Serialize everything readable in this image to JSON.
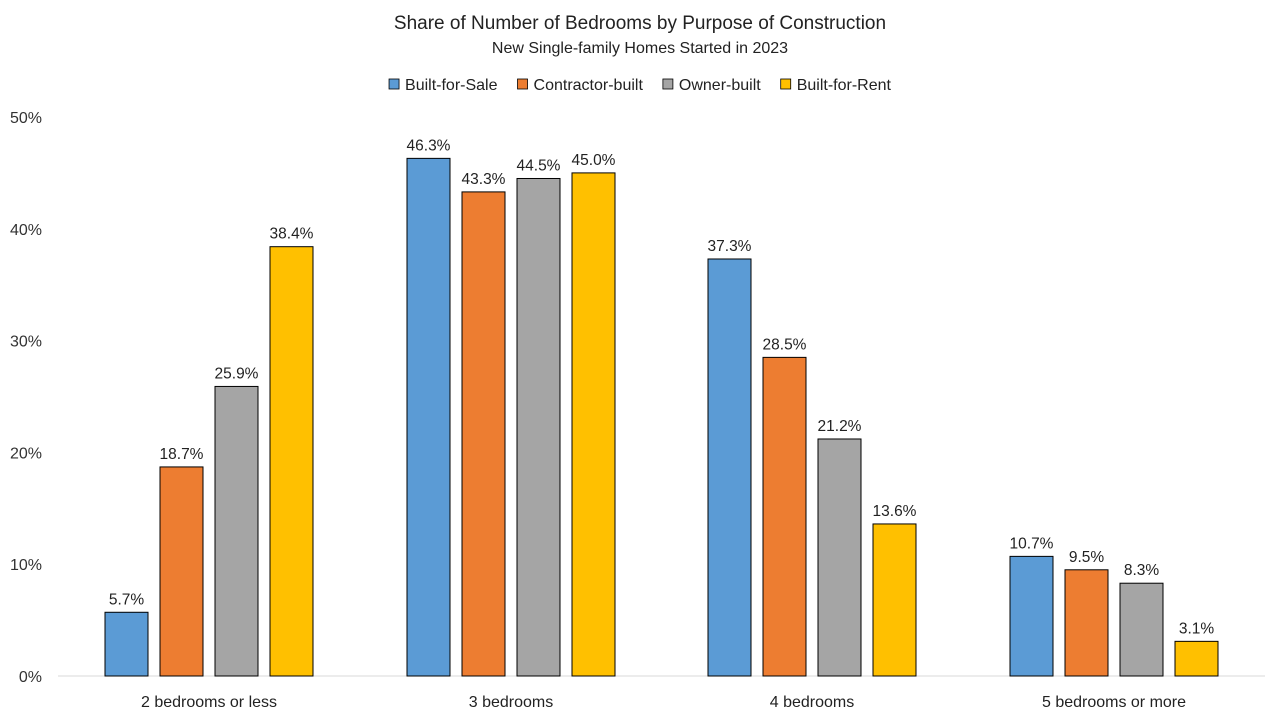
{
  "chart_data": {
    "type": "bar",
    "title": "Share of Number of Bedrooms by Purpose of Construction",
    "subtitle": "New Single-family Homes Started in 2023",
    "categories": [
      "2 bedrooms or less",
      "3 bedrooms",
      "4 bedrooms",
      "5 bedrooms or more"
    ],
    "series": [
      {
        "name": "Built-for-Sale",
        "color": "#5B9BD5",
        "values": [
          5.7,
          46.3,
          37.3,
          10.7
        ],
        "labels": [
          "5.7%",
          "46.3%",
          "37.3%",
          "10.7%"
        ]
      },
      {
        "name": "Contractor-built",
        "color": "#ED7D31",
        "values": [
          18.7,
          43.3,
          28.5,
          9.5
        ],
        "labels": [
          "18.7%",
          "43.3%",
          "28.5%",
          "9.5%"
        ]
      },
      {
        "name": "Owner-built",
        "color": "#A5A5A5",
        "values": [
          25.9,
          44.5,
          21.2,
          8.3
        ],
        "labels": [
          "25.9%",
          "44.5%",
          "21.2%",
          "8.3%"
        ]
      },
      {
        "name": "Built-for-Rent",
        "color": "#FFC000",
        "values": [
          38.4,
          45.0,
          13.6,
          3.1
        ],
        "labels": [
          "38.4%",
          "45.0%",
          "13.6%",
          "3.1%"
        ]
      }
    ],
    "ylim": [
      0,
      50
    ],
    "yticks": [
      "0%",
      "10%",
      "20%",
      "30%",
      "40%",
      "50%"
    ],
    "xlabel": "",
    "ylabel": "",
    "grid": false,
    "legend_position": "top"
  }
}
